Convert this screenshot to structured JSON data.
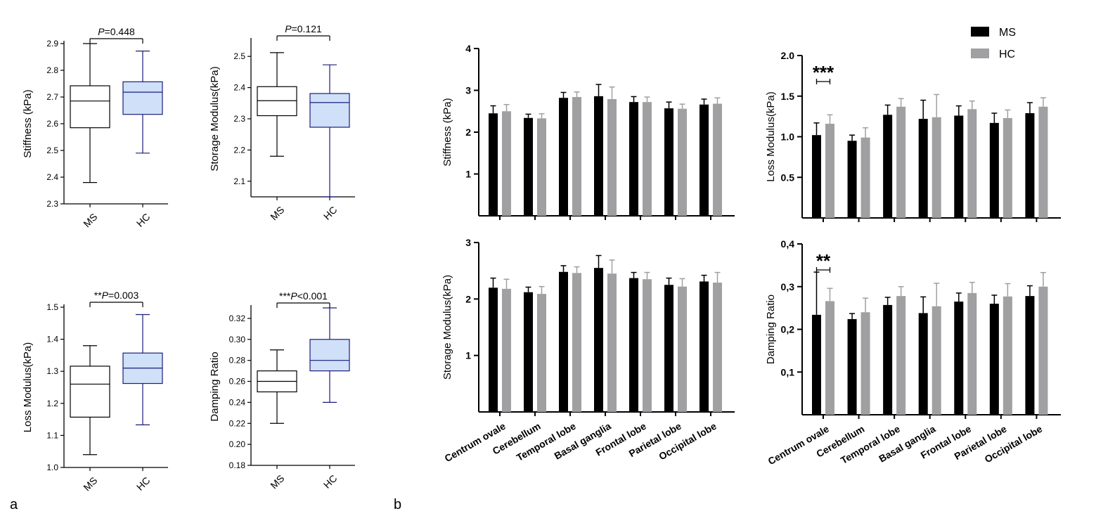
{
  "panel_labels": {
    "a": "a",
    "b": "b"
  },
  "colors": {
    "ms_box": "#ffffff",
    "hc_box": "#cfe0f8",
    "hc_stroke": "#1c1c7a",
    "ms_stroke": "#000000",
    "ms_bar": "#000000",
    "hc_bar": "#a0a0a2"
  },
  "chart_data": [
    {
      "type": "box",
      "title": "",
      "ylabel": "Stiffness (kPa)",
      "categories": [
        "MS",
        "HC"
      ],
      "ylim": [
        2.3,
        2.9
      ],
      "yticks": [
        {
          "v": 2.3,
          "label": "2.3"
        },
        {
          "v": 2.4,
          "label": "2.4"
        },
        {
          "v": 2.5,
          "label": "2.5"
        },
        {
          "v": 2.6,
          "label": "2.6"
        },
        {
          "v": 2.7,
          "label": "2.7"
        },
        {
          "v": 2.8,
          "label": "2.8"
        },
        {
          "v": 2.9,
          "label": "2.9"
        }
      ],
      "boxes": [
        {
          "min": 2.38,
          "q1": 2.585,
          "median": 2.685,
          "q3": 2.742,
          "max": 2.9
        },
        {
          "min": 2.49,
          "q1": 2.635,
          "median": 2.718,
          "q3": 2.757,
          "max": 2.872
        }
      ],
      "annotation": {
        "prefix": "",
        "p": "P",
        "text": "=0.448"
      }
    },
    {
      "type": "box",
      "title": "",
      "ylabel": "Storage Modulus(kPa)",
      "categories": [
        "MS",
        "HC"
      ],
      "ylim": [
        2.05,
        2.55
      ],
      "yticks": [
        {
          "v": 2.1,
          "label": "2.1"
        },
        {
          "v": 2.2,
          "label": "2.2"
        },
        {
          "v": 2.3,
          "label": "2.3"
        },
        {
          "v": 2.4,
          "label": "2.4"
        },
        {
          "v": 2.5,
          "label": "2.5"
        }
      ],
      "boxes": [
        {
          "min": 2.18,
          "q1": 2.31,
          "median": 2.358,
          "q3": 2.403,
          "max": 2.512
        },
        {
          "min": 2.05,
          "q1": 2.273,
          "median": 2.352,
          "q3": 2.381,
          "max": 2.473
        }
      ],
      "annotation": {
        "prefix": "",
        "p": "P",
        "text": "=0.121"
      }
    },
    {
      "type": "box",
      "title": "",
      "ylabel": "Loss Modulus(kPa)",
      "categories": [
        "MS",
        "HC"
      ],
      "ylim": [
        1.0,
        1.5
      ],
      "yticks": [
        {
          "v": 1.0,
          "label": "1.0"
        },
        {
          "v": 1.1,
          "label": "1.1"
        },
        {
          "v": 1.2,
          "label": "1.2"
        },
        {
          "v": 1.3,
          "label": "1.3"
        },
        {
          "v": 1.4,
          "label": "1.4"
        },
        {
          "v": 1.5,
          "label": "1.5"
        }
      ],
      "boxes": [
        {
          "min": 1.04,
          "q1": 1.157,
          "median": 1.26,
          "q3": 1.316,
          "max": 1.38
        },
        {
          "min": 1.133,
          "q1": 1.262,
          "median": 1.31,
          "q3": 1.357,
          "max": 1.477
        }
      ],
      "annotation": {
        "prefix": "**",
        "p": "P",
        "text": "=0.003"
      }
    },
    {
      "type": "box",
      "title": "",
      "ylabel": "Damping Ratio",
      "categories": [
        "MS",
        "HC"
      ],
      "ylim": [
        0.18,
        0.33
      ],
      "yticks": [
        {
          "v": 0.18,
          "label": "0.18"
        },
        {
          "v": 0.2,
          "label": "0.20"
        },
        {
          "v": 0.22,
          "label": "0.22"
        },
        {
          "v": 0.24,
          "label": "0.24"
        },
        {
          "v": 0.26,
          "label": "0.26"
        },
        {
          "v": 0.28,
          "label": "0.28"
        },
        {
          "v": 0.3,
          "label": "0.30"
        },
        {
          "v": 0.32,
          "label": "0.32"
        }
      ],
      "boxes": [
        {
          "min": 0.22,
          "q1": 0.25,
          "median": 0.26,
          "q3": 0.27,
          "max": 0.29
        },
        {
          "min": 0.24,
          "q1": 0.27,
          "median": 0.28,
          "q3": 0.3,
          "max": 0.33
        }
      ],
      "annotation": {
        "prefix": "***",
        "p": "P",
        "text": "<0.001"
      }
    },
    {
      "type": "bar",
      "ylabel": "Stiffness (kPa)",
      "ylim": [
        0,
        4
      ],
      "yticks": [
        {
          "v": 1,
          "label": "1"
        },
        {
          "v": 2,
          "label": "2"
        },
        {
          "v": 3,
          "label": "3"
        },
        {
          "v": 4,
          "label": "4"
        }
      ],
      "categories": [
        "Centrum ovale",
        "Cerebellum",
        "Temporal lobe",
        "Basal ganglia",
        "Frontal lobe",
        "Parietal lobe",
        "Occipital lobe"
      ],
      "show_categories": false,
      "series": [
        {
          "name": "MS",
          "values": [
            2.45,
            2.34,
            2.82,
            2.86,
            2.72,
            2.57,
            2.66
          ],
          "errors": [
            0.18,
            0.09,
            0.13,
            0.28,
            0.13,
            0.15,
            0.13
          ]
        },
        {
          "name": "HC",
          "values": [
            2.5,
            2.33,
            2.84,
            2.79,
            2.72,
            2.56,
            2.68
          ],
          "errors": [
            0.16,
            0.11,
            0.12,
            0.29,
            0.12,
            0.11,
            0.14
          ]
        }
      ],
      "significance": null
    },
    {
      "type": "bar",
      "ylabel": "Loss Modulus(kPa)",
      "ylim": [
        0,
        2.0
      ],
      "yticks": [
        {
          "v": 0.5,
          "label": "0.5"
        },
        {
          "v": 1.0,
          "label": "1.0"
        },
        {
          "v": 1.5,
          "label": "1.5"
        },
        {
          "v": 2.0,
          "label": "2.0"
        }
      ],
      "categories": [
        "Centrum ovale",
        "Cerebellum",
        "Temporal lobe",
        "Basal ganglia",
        "Frontal lobe",
        "Parietal lobe",
        "Occipital lobe"
      ],
      "show_categories": false,
      "series": [
        {
          "name": "MS",
          "values": [
            1.02,
            0.95,
            1.27,
            1.22,
            1.26,
            1.17,
            1.29
          ],
          "errors": [
            0.15,
            0.07,
            0.12,
            0.23,
            0.12,
            0.12,
            0.13
          ]
        },
        {
          "name": "HC",
          "values": [
            1.16,
            0.99,
            1.37,
            1.24,
            1.34,
            1.23,
            1.37
          ],
          "errors": [
            0.11,
            0.12,
            0.1,
            0.28,
            0.1,
            0.1,
            0.11
          ]
        }
      ],
      "significance": {
        "category": 0,
        "stars": "***"
      }
    },
    {
      "type": "bar",
      "ylabel": "Storage Modulus(kPa)",
      "ylim": [
        0,
        3
      ],
      "yticks": [
        {
          "v": 1,
          "label": "1"
        },
        {
          "v": 2,
          "label": "2"
        },
        {
          "v": 3,
          "label": "3"
        }
      ],
      "categories": [
        "Centrum ovale",
        "Cerebellum",
        "Temporal lobe",
        "Basal ganglia",
        "Frontal lobe",
        "Parietal lobe",
        "Occipital lobe"
      ],
      "show_categories": true,
      "series": [
        {
          "name": "MS",
          "values": [
            2.2,
            2.12,
            2.48,
            2.55,
            2.37,
            2.25,
            2.31
          ],
          "errors": [
            0.17,
            0.09,
            0.11,
            0.22,
            0.1,
            0.12,
            0.11
          ]
        },
        {
          "name": "HC",
          "values": [
            2.18,
            2.09,
            2.46,
            2.45,
            2.35,
            2.22,
            2.29
          ],
          "errors": [
            0.17,
            0.13,
            0.11,
            0.24,
            0.12,
            0.14,
            0.18
          ]
        }
      ],
      "significance": null
    },
    {
      "type": "bar",
      "ylabel": "Damping Ratio",
      "ylim": [
        0,
        0.4
      ],
      "yticks": [
        {
          "v": 0.1,
          "label": "0,1"
        },
        {
          "v": 0.2,
          "label": "0,2"
        },
        {
          "v": 0.3,
          "label": "0,3"
        },
        {
          "v": 0.4,
          "label": "0,4"
        }
      ],
      "categories": [
        "Centrum ovale",
        "Cerebellum",
        "Temporal lobe",
        "Basal ganglia",
        "Frontal lobe",
        "Parietal lobe",
        "Occipital lobe"
      ],
      "show_categories": true,
      "series": [
        {
          "name": "MS",
          "values": [
            0.234,
            0.224,
            0.257,
            0.238,
            0.265,
            0.26,
            0.278
          ],
          "errors": [
            0.1,
            0.013,
            0.018,
            0.038,
            0.02,
            0.02,
            0.024
          ]
        },
        {
          "name": "HC",
          "values": [
            0.266,
            0.24,
            0.278,
            0.254,
            0.285,
            0.277,
            0.3
          ],
          "errors": [
            0.03,
            0.033,
            0.022,
            0.054,
            0.025,
            0.03,
            0.033
          ]
        }
      ],
      "significance": {
        "category": 0,
        "stars": "**"
      }
    }
  ],
  "legend": [
    {
      "name": "MS",
      "color_key": "ms_bar"
    },
    {
      "name": "HC",
      "color_key": "hc_bar"
    }
  ]
}
